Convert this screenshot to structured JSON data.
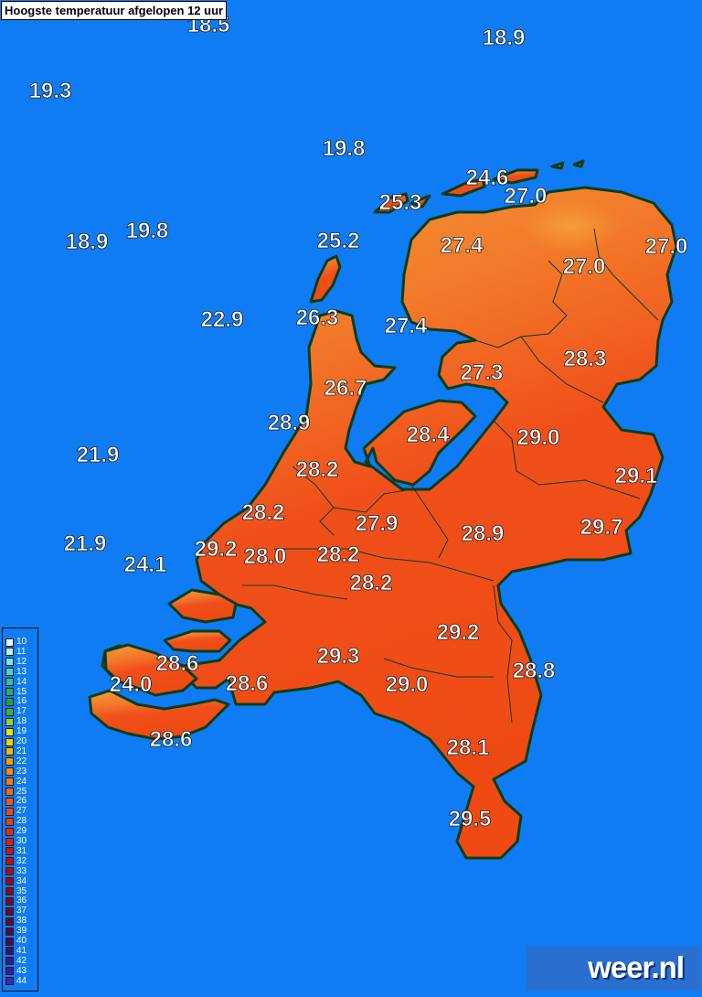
{
  "title": "Hoogste temperatuur afgelopen 12 uur",
  "brand": "weer.nl",
  "colors": {
    "sea": "#0f7cf3",
    "land_warm": "#f04a14",
    "land_cool": "#f08a28",
    "coast": "#0c3d19"
  },
  "legend": {
    "levels": [
      "10",
      "11",
      "12",
      "13",
      "14",
      "15",
      "16",
      "17",
      "18",
      "19",
      "20",
      "21",
      "22",
      "23",
      "24",
      "25",
      "26",
      "27",
      "28",
      "29",
      "30",
      "31",
      "32",
      "33",
      "34",
      "35",
      "36",
      "37",
      "38",
      "39",
      "40",
      "41",
      "42",
      "43",
      "44"
    ],
    "colors": [
      "#e8fff8",
      "#b8f4ec",
      "#7fe6d8",
      "#4fd4bc",
      "#2fc49a",
      "#20b070",
      "#1fa24a",
      "#3cb43c",
      "#9ad028",
      "#e6e614",
      "#f0d20a",
      "#f5b800",
      "#f7a008",
      "#f68a14",
      "#f27a1a",
      "#f06a1a",
      "#ee5a1a",
      "#ec4a1a",
      "#e83c1a",
      "#e22c18",
      "#d81e18",
      "#cc1414",
      "#c01010",
      "#b00c10",
      "#a00a14",
      "#900818",
      "#80061c",
      "#700624",
      "#60082e",
      "#500a40",
      "#460c58",
      "#3e0e6e",
      "#3a1484",
      "#3a1c96",
      "#3c28a8"
    ]
  },
  "stations": [
    {
      "v": "18.9"
    },
    {
      "v": "18.5"
    },
    {
      "v": "19.3"
    },
    {
      "v": "19.8"
    },
    {
      "v": "24.6"
    },
    {
      "v": "25.3"
    },
    {
      "v": "27.0"
    },
    {
      "v": "18.9"
    },
    {
      "v": "19.8"
    },
    {
      "v": "25.2"
    },
    {
      "v": "27.4"
    },
    {
      "v": "27.0"
    },
    {
      "v": "27.0"
    },
    {
      "v": "22.9"
    },
    {
      "v": "26.3"
    },
    {
      "v": "27.4"
    },
    {
      "v": "28.3"
    },
    {
      "v": "27.3"
    },
    {
      "v": "26.7"
    },
    {
      "v": "28.9"
    },
    {
      "v": "28.4"
    },
    {
      "v": "29.0"
    },
    {
      "v": "21.9"
    },
    {
      "v": "28.2"
    },
    {
      "v": "29.1"
    },
    {
      "v": "28.2"
    },
    {
      "v": "27.9"
    },
    {
      "v": "21.9"
    },
    {
      "v": "29.2"
    },
    {
      "v": "28.0"
    },
    {
      "v": "28.2"
    },
    {
      "v": "28.9"
    },
    {
      "v": "29.7"
    },
    {
      "v": "24.1"
    },
    {
      "v": "28.2"
    },
    {
      "v": "29.2"
    },
    {
      "v": "28.6"
    },
    {
      "v": "29.3"
    },
    {
      "v": "24.0"
    },
    {
      "v": "28.6"
    },
    {
      "v": "29.0"
    },
    {
      "v": "28.8"
    },
    {
      "v": "28.6"
    },
    {
      "v": "28.1"
    },
    {
      "v": "29.5"
    }
  ]
}
